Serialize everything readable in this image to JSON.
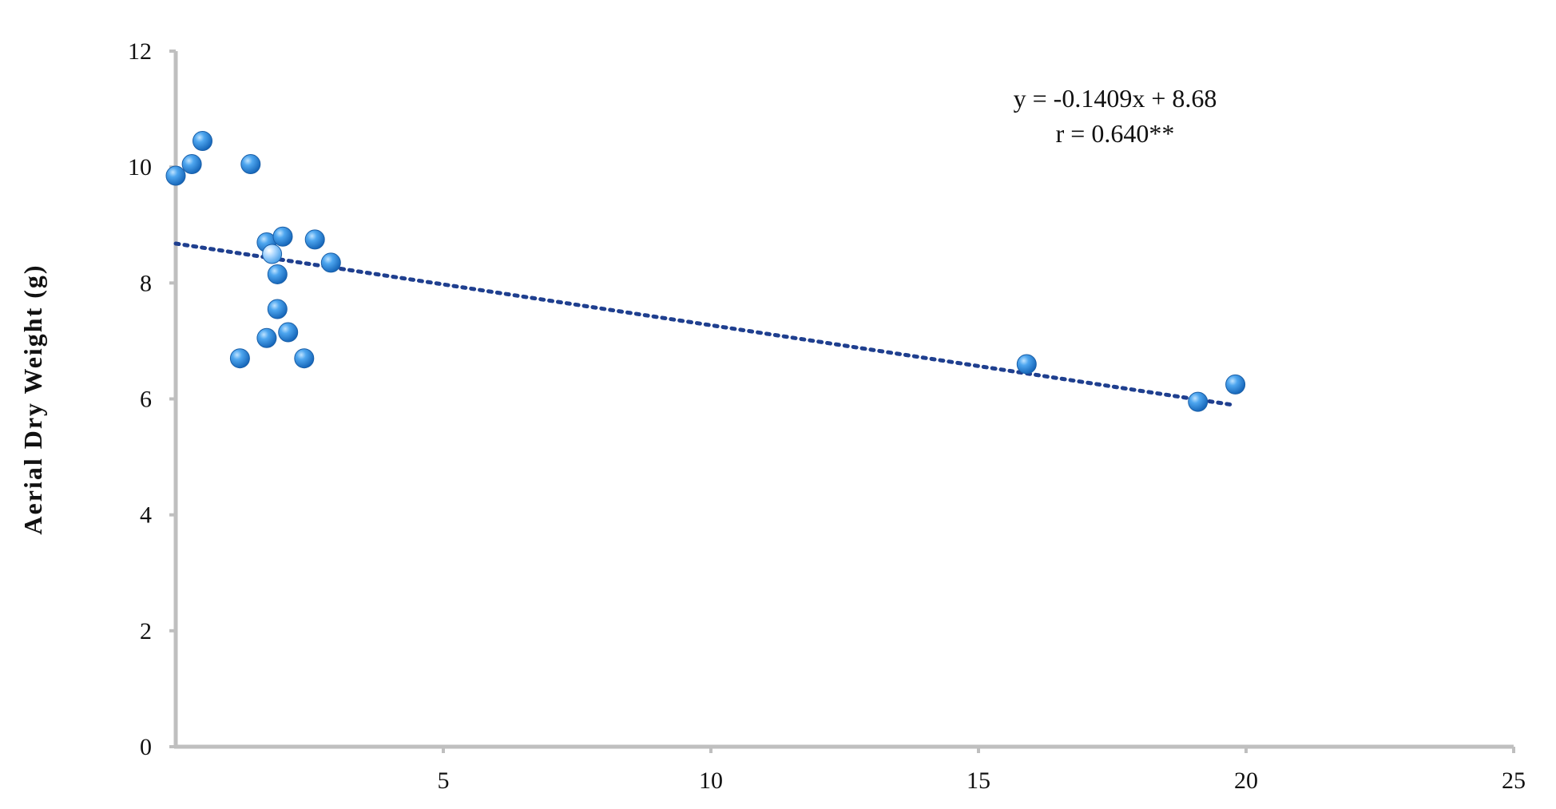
{
  "chart_data": {
    "type": "scatter",
    "title": "",
    "xlabel": "",
    "ylabel": "Aerial   Dry   Weight   (g)",
    "xlim": [
      0,
      25
    ],
    "ylim": [
      0,
      12
    ],
    "x_ticks": [
      5,
      10,
      15,
      20,
      25
    ],
    "y_ticks": [
      0,
      2,
      4,
      6,
      8,
      10,
      12
    ],
    "grid": false,
    "legend": "none",
    "colors": {
      "axis": "#bfbfbf",
      "point": "#2b8be0",
      "point_highlight": "#a9d6ff",
      "trendline": "#1f3f8f"
    },
    "points": [
      {
        "x": 0.0,
        "y": 9.85
      },
      {
        "x": 0.3,
        "y": 10.05
      },
      {
        "x": 0.5,
        "y": 10.45
      },
      {
        "x": 1.4,
        "y": 10.05
      },
      {
        "x": 1.2,
        "y": 6.7
      },
      {
        "x": 1.7,
        "y": 8.7
      },
      {
        "x": 1.8,
        "y": 8.5
      },
      {
        "x": 2.0,
        "y": 8.8
      },
      {
        "x": 1.9,
        "y": 8.15
      },
      {
        "x": 1.9,
        "y": 7.55
      },
      {
        "x": 1.7,
        "y": 7.05
      },
      {
        "x": 2.1,
        "y": 7.15
      },
      {
        "x": 2.4,
        "y": 6.7
      },
      {
        "x": 2.6,
        "y": 8.75
      },
      {
        "x": 2.9,
        "y": 8.35
      },
      {
        "x": 15.9,
        "y": 6.6
      },
      {
        "x": 19.1,
        "y": 5.95
      },
      {
        "x": 19.8,
        "y": 6.25
      }
    ],
    "trendline": {
      "slope": -0.1409,
      "intercept": 8.68,
      "x_range": [
        0,
        19.8
      ],
      "style": "dotted"
    },
    "annotations": {
      "equation": "y = -0.1409x + 8.68",
      "correlation": "r = 0.640**"
    }
  }
}
